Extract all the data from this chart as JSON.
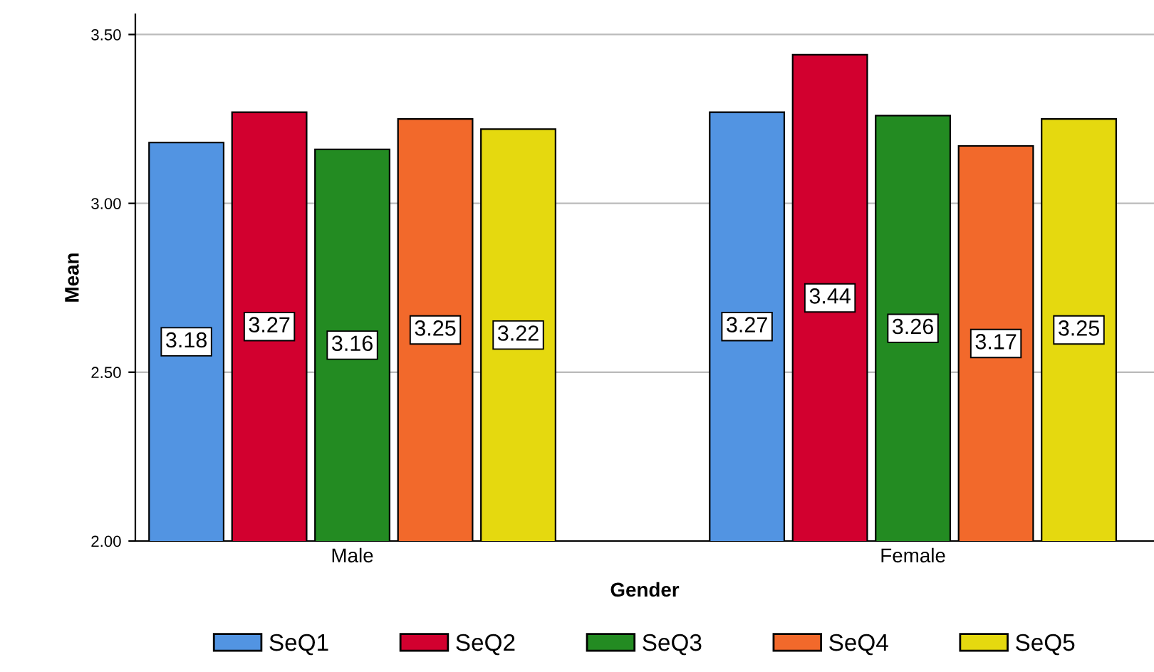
{
  "chart_data": {
    "type": "bar",
    "xlabel": "Gender",
    "ylabel": "Mean",
    "categories": [
      "Male",
      "Female"
    ],
    "series": [
      {
        "name": "SeQ1",
        "color": "#5294e2",
        "values": [
          3.18,
          3.27
        ]
      },
      {
        "name": "SeQ2",
        "color": "#d2002f",
        "values": [
          3.27,
          3.44
        ]
      },
      {
        "name": "SeQ3",
        "color": "#238b22",
        "values": [
          3.16,
          3.26
        ]
      },
      {
        "name": "SeQ4",
        "color": "#f2692b",
        "values": [
          3.25,
          3.17
        ]
      },
      {
        "name": "SeQ5",
        "color": "#e5d90f",
        "values": [
          3.22,
          3.25
        ]
      }
    ],
    "ylim": [
      2,
      3.56
    ],
    "yticks": [
      {
        "value": 2,
        "label": "2.00"
      },
      {
        "value": 2.5,
        "label": "2.50"
      },
      {
        "value": 3,
        "label": "3.00"
      },
      {
        "value": 3.5,
        "label": "3.50"
      }
    ],
    "grid": "y",
    "legend": "bottom",
    "data_labels": true
  }
}
